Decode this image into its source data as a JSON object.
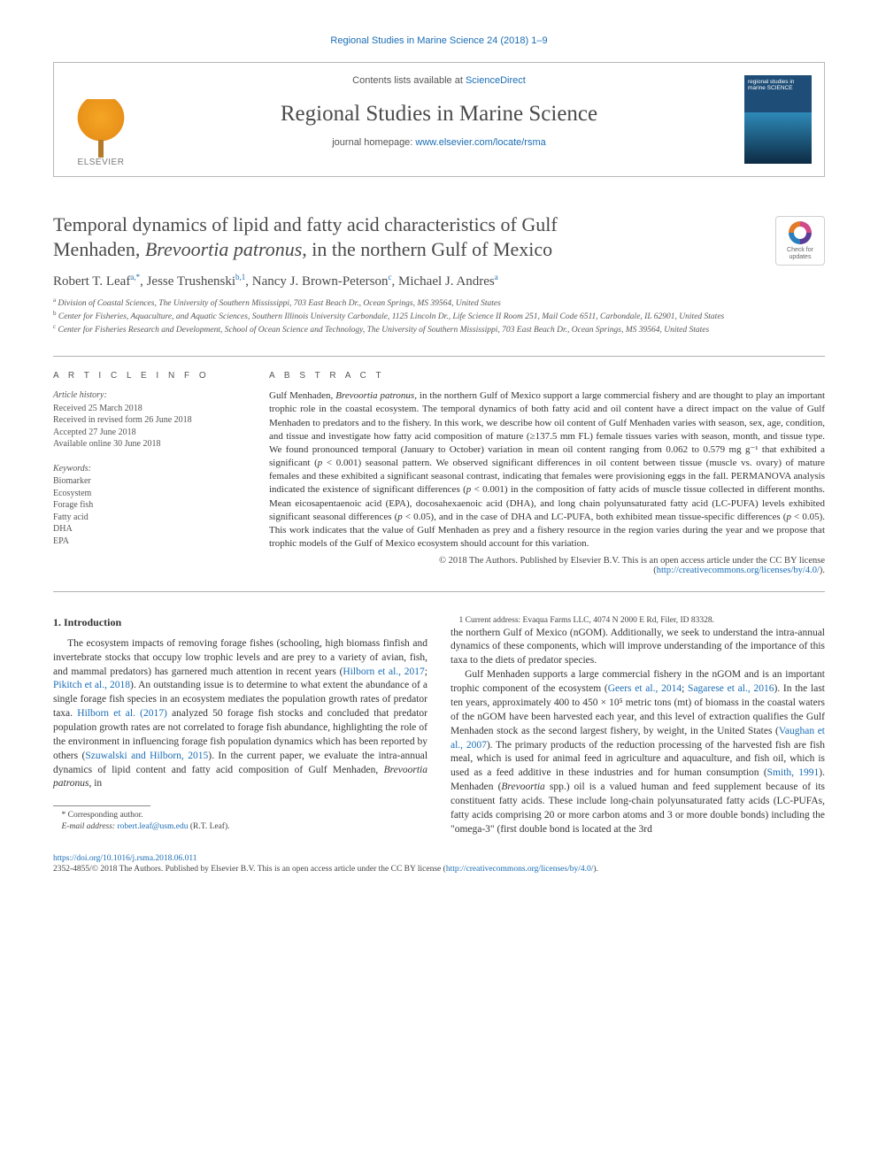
{
  "running_header": "Regional Studies in Marine Science 24 (2018) 1–9",
  "banner": {
    "contents_line_prefix": "Contents lists available at ",
    "contents_link": "ScienceDirect",
    "journal_name": "Regional Studies in Marine Science",
    "homepage_prefix": "journal homepage: ",
    "homepage_link": "www.elsevier.com/locate/rsma",
    "publisher_name": "ELSEVIER",
    "cover_text": "regional studies in marine SCIENCE"
  },
  "title": {
    "line1": "Temporal dynamics of lipid and fatty acid characteristics of Gulf",
    "line2_a": "Menhaden, ",
    "line2_italic": "Brevoortia patronus",
    "line2_b": ", in the northern Gulf of Mexico"
  },
  "check_updates_label": "Check for updates",
  "authors_html": "Robert T. Leaf|a,*|, Jesse Trushenski|b,1|, Nancy J. Brown-Peterson|c|, Michael J. Andres|a|",
  "affiliations": {
    "a": "Division of Coastal Sciences, The University of Southern Mississippi, 703 East Beach Dr., Ocean Springs, MS 39564, United States",
    "b": "Center for Fisheries, Aquaculture, and Aquatic Sciences, Southern Illinois University Carbondale, 1125 Lincoln Dr., Life Science II Room 251, Mail Code 6511, Carbondale, IL 62901, United States",
    "c": "Center for Fisheries Research and Development, School of Ocean Science and Technology, The University of Southern Mississippi, 703 East Beach Dr., Ocean Springs, MS 39564, United States"
  },
  "article_info": {
    "label": "A R T I C L E   I N F O",
    "history_heading": "Article history:",
    "history": [
      "Received 25 March 2018",
      "Received in revised form 26 June 2018",
      "Accepted 27 June 2018",
      "Available online 30 June 2018"
    ],
    "keywords_heading": "Keywords:",
    "keywords": [
      "Biomarker",
      "Ecosystem",
      "Forage fish",
      "Fatty acid",
      "DHA",
      "EPA"
    ]
  },
  "abstract": {
    "label": "A B S T R A C T",
    "text_parts": [
      "Gulf Menhaden, ",
      {
        "i": "Brevoortia patronus"
      },
      ", in the northern Gulf of Mexico support a large commercial fishery and are thought to play an important trophic role in the coastal ecosystem. The temporal dynamics of both fatty acid and oil content have a direct impact on the value of Gulf Menhaden to predators and to the fishery. In this work, we describe how oil content of Gulf Menhaden varies with season, sex, age, condition, and tissue and investigate how fatty acid composition of mature (≥137.5 mm FL) female tissues varies with season, month, and tissue type. We found pronounced temporal (January to October) variation in mean oil content ranging from 0.062 to 0.579 mg g⁻¹ that exhibited a significant (",
      {
        "i": "p"
      },
      " < 0.001) seasonal pattern. We observed significant differences in oil content between tissue (muscle vs. ovary) of mature females and these exhibited a significant seasonal contrast, indicating that females were provisioning eggs in the fall. PERMANOVA analysis indicated the existence of significant differences (",
      {
        "i": "p"
      },
      " < 0.001) in the composition of fatty acids of muscle tissue collected in different months. Mean eicosapentaenoic acid (EPA), docosahexaenoic acid (DHA), and long chain polyunsaturated fatty acid (LC-PUFA) levels exhibited significant seasonal differences (",
      {
        "i": "p"
      },
      " < 0.05), and in the case of DHA and LC-PUFA, both exhibited mean tissue-specific differences (",
      {
        "i": "p"
      },
      " < 0.05). This work indicates that the value of Gulf Menhaden as prey and a fishery resource in the region varies during the year and we propose that trophic models of the Gulf of Mexico ecosystem should account for this variation."
    ],
    "copyright_line": "© 2018 The Authors. Published by Elsevier B.V. This is an open access article under the CC BY license",
    "license_link": "http://creativecommons.org/licenses/by/4.0/"
  },
  "intro": {
    "heading": "1. Introduction",
    "p1_parts": [
      "The ecosystem impacts of removing forage fishes (schooling, high biomass finfish and invertebrate stocks that occupy low trophic levels and are prey to a variety of avian, fish, and mammal predators) has garnered much attention in recent years (",
      {
        "a": "Hilborn et al., 2017"
      },
      "; ",
      {
        "a": "Pikitch et al., 2018"
      },
      "). An outstanding issue is to determine to what extent the abundance of a single forage fish species in an ecosystem mediates the population growth rates of predator taxa. ",
      {
        "a": "Hilborn et al. (2017)"
      },
      " analyzed 50 forage fish stocks and concluded that predator population growth rates are not correlated to forage fish abundance, highlighting the role of the environment in influencing forage fish population dynamics which has been reported by others (",
      {
        "a": "Szuwalski and Hilborn, 2015"
      },
      "). In the current paper, we evaluate the intra-annual dynamics of lipid content and fatty acid composition of Gulf Menhaden, ",
      {
        "i": "Brevoortia patronus"
      },
      ", in"
    ],
    "p2_parts": [
      "the northern Gulf of Mexico (nGOM). Additionally, we seek to understand the intra-annual dynamics of these components, which will improve understanding of the importance of this taxa to the diets of predator species."
    ],
    "p3_parts": [
      "Gulf Menhaden supports a large commercial fishery in the nGOM and is an important trophic component of the ecosystem (",
      {
        "a": "Geers et al., 2014"
      },
      "; ",
      {
        "a": "Sagarese et al., 2016"
      },
      "). In the last ten years, approximately 400 to 450 × 10⁵ metric tons (mt) of biomass in the coastal waters of the nGOM have been harvested each year, and this level of extraction qualifies the Gulf Menhaden stock as the second largest fishery, by weight, in the United States (",
      {
        "a": "Vaughan et al., 2007"
      },
      "). The primary products of the reduction processing of the harvested fish are fish meal, which is used for animal feed in agriculture and aquaculture, and fish oil, which is used as a feed additive in these industries and for human consumption (",
      {
        "a": "Smith, 1991"
      },
      "). Menhaden (",
      {
        "i": "Brevoortia"
      },
      " spp.) oil is a valued human and feed supplement because of its constituent fatty acids. These include long-chain polyunsaturated fatty acids (LC-PUFAs, fatty acids comprising 20 or more carbon atoms and 3 or more double bonds) including the \"omega-3\" (first double bond is located at the 3rd"
    ]
  },
  "footnotes": {
    "corr": "Corresponding author.",
    "email_label": "E-mail address: ",
    "email": "robert.leaf@usm.edu",
    "email_who": " (R.T. Leaf).",
    "note1": "Current address: Evaqua Farms LLC, 4074 N 2000 E Rd, Filer, ID 83328."
  },
  "footer": {
    "doi": "https://doi.org/10.1016/j.rsma.2018.06.011",
    "issn_line": "2352-4855/© 2018 The Authors. Published by Elsevier B.V. This is an open access article under the CC BY license (",
    "license_link": "http://creativecommons.org/licenses/by/4.0/",
    "close": ")."
  },
  "colors": {
    "link": "#1a6db5",
    "text": "#333333",
    "muted": "#555555",
    "rule": "#b0b0b0"
  }
}
